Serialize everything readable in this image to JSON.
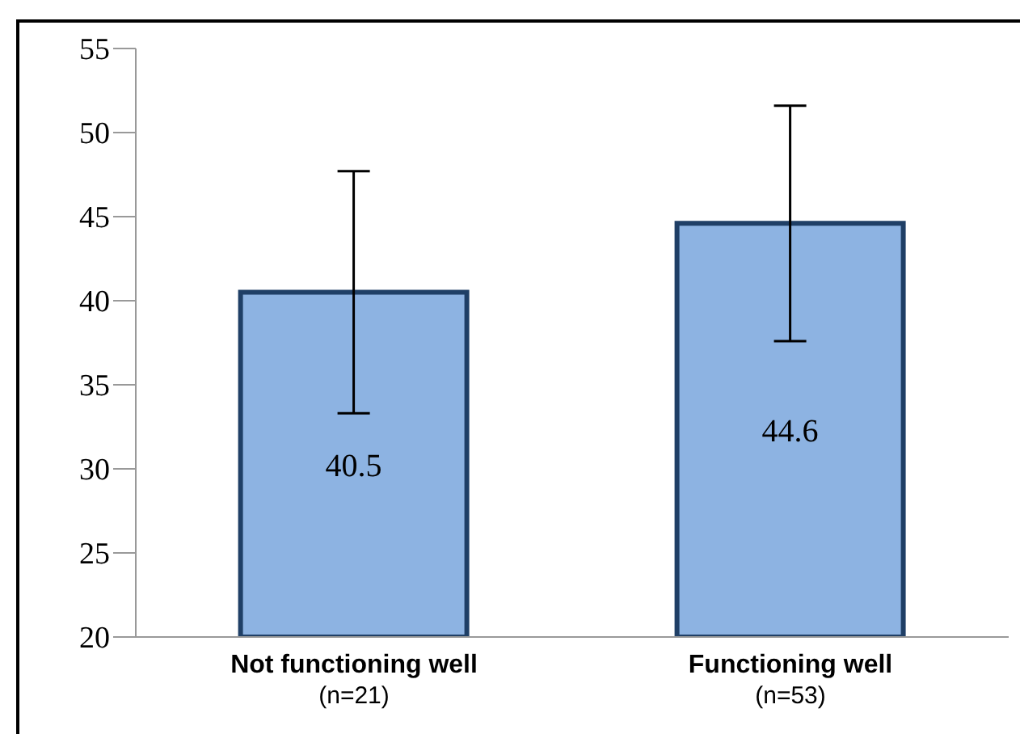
{
  "chart_data": {
    "type": "bar",
    "categories": [
      "Not functioning well\n(n=21)",
      "Functioning well\n(n=53)"
    ],
    "values": [
      40.5,
      44.6
    ],
    "errors": [
      7.2,
      7.0
    ],
    "color": "#8db3e2",
    "data_labels": true,
    "ylim": [
      20,
      55
    ],
    "yticks": [
      20,
      25,
      30,
      35,
      40,
      45,
      50,
      55
    ],
    "grid": false,
    "legend": false
  }
}
